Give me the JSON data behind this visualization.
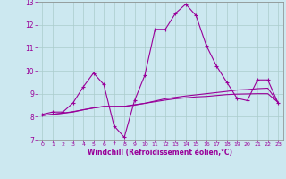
{
  "xlabel": "Windchill (Refroidissement éolien,°C)",
  "x": [
    0,
    1,
    2,
    3,
    4,
    5,
    6,
    7,
    8,
    9,
    10,
    11,
    12,
    13,
    14,
    15,
    16,
    17,
    18,
    19,
    20,
    21,
    22,
    23
  ],
  "y_main": [
    8.1,
    8.2,
    8.2,
    8.6,
    9.3,
    9.9,
    9.4,
    7.6,
    7.1,
    8.7,
    9.8,
    11.8,
    11.8,
    12.5,
    12.9,
    12.4,
    11.1,
    10.2,
    9.5,
    8.8,
    8.7,
    9.6,
    9.6,
    8.6
  ],
  "y_trend1": [
    8.05,
    8.1,
    8.15,
    8.2,
    8.3,
    8.38,
    8.44,
    8.44,
    8.45,
    8.52,
    8.58,
    8.65,
    8.72,
    8.78,
    8.82,
    8.86,
    8.88,
    8.92,
    8.96,
    8.98,
    8.99,
    9.0,
    9.0,
    8.62
  ],
  "y_trend2": [
    8.05,
    8.1,
    8.15,
    8.22,
    8.3,
    8.38,
    8.45,
    8.45,
    8.45,
    8.5,
    8.58,
    8.68,
    8.78,
    8.84,
    8.9,
    8.95,
    9.0,
    9.05,
    9.1,
    9.16,
    9.18,
    9.22,
    9.24,
    8.62
  ],
  "line_color": "#990099",
  "bg_color": "#cce8f0",
  "grid_color": "#aacccc",
  "ylim": [
    7.0,
    13.0
  ],
  "xlim": [
    -0.5,
    23.5
  ],
  "yticks": [
    7,
    8,
    9,
    10,
    11,
    12,
    13
  ],
  "xticks": [
    0,
    1,
    2,
    3,
    4,
    5,
    6,
    7,
    8,
    9,
    10,
    11,
    12,
    13,
    14,
    15,
    16,
    17,
    18,
    19,
    20,
    21,
    22,
    23
  ]
}
